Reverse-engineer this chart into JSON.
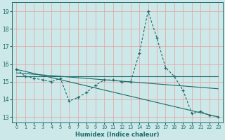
{
  "xlabel": "Humidex (Indice chaleur)",
  "background_color": "#cde8e8",
  "grid_color": "#f5c0c0",
  "line_color": "#1a6b6b",
  "xlim": [
    -0.5,
    23.5
  ],
  "ylim": [
    12.7,
    19.5
  ],
  "yticks": [
    13,
    14,
    15,
    16,
    17,
    18,
    19
  ],
  "xticks": [
    0,
    1,
    2,
    3,
    4,
    5,
    6,
    7,
    8,
    9,
    10,
    11,
    12,
    13,
    14,
    15,
    16,
    17,
    18,
    19,
    20,
    21,
    22,
    23
  ],
  "main_curve": {
    "x": [
      0,
      1,
      2,
      3,
      4,
      5,
      6,
      7,
      8,
      9,
      10,
      11,
      12,
      13,
      14,
      15,
      16,
      17,
      18,
      19,
      20,
      21,
      22,
      23
    ],
    "y": [
      15.7,
      15.3,
      15.2,
      15.1,
      15.0,
      15.2,
      13.9,
      14.1,
      14.4,
      14.8,
      15.1,
      15.1,
      15.0,
      15.0,
      16.6,
      19.0,
      17.5,
      15.8,
      15.3,
      14.5,
      13.2,
      13.3,
      13.1,
      13.0
    ]
  },
  "flat_line": {
    "x": [
      0,
      23
    ],
    "y": [
      15.3,
      15.3
    ]
  },
  "gentle_decline": {
    "x": [
      0,
      23
    ],
    "y": [
      15.5,
      14.6
    ]
  },
  "steep_decline": {
    "x": [
      0,
      23
    ],
    "y": [
      15.7,
      13.0
    ]
  }
}
